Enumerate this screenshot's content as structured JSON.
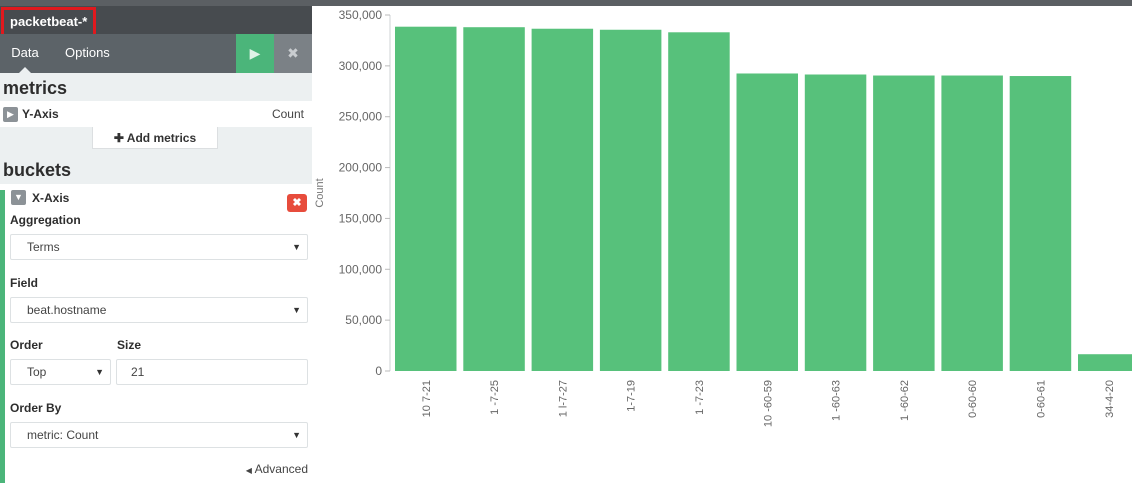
{
  "index_pattern": "packetbeat-*",
  "tabs": {
    "data": "Data",
    "options": "Options"
  },
  "buttons": {
    "apply": "▶",
    "discard": "✖"
  },
  "metrics": {
    "title": "metrics",
    "y_axis_label": "Y-Axis",
    "y_axis_value": "Count",
    "add_label": "Add metrics"
  },
  "buckets": {
    "title": "buckets",
    "x_axis_label": "X-Axis",
    "aggregation_label": "Aggregation",
    "aggregation_value": "Terms",
    "field_label": "Field",
    "field_value": "beat.hostname",
    "order_label": "Order",
    "order_value": "Top",
    "size_label": "Size",
    "size_value": "21",
    "order_by_label": "Order By",
    "order_by_value": "metric: Count",
    "advanced_label": "Advanced"
  },
  "colors": {
    "bar": "#57c17b",
    "accent": "#4bb57a",
    "danger": "#e74c3c"
  },
  "chart_data": {
    "type": "bar",
    "ylabel": "Count",
    "ylim": [
      0,
      350000
    ],
    "yticks": [
      "0",
      "50,000",
      "100,000",
      "150,000",
      "200,000",
      "250,000",
      "300,000",
      "350,000"
    ],
    "categories": [
      "10 7-21",
      "1 -7-25",
      "1 l-7-27",
      "1-7-19",
      "1 -7-23",
      "10 -60-59",
      "1 -60-63",
      "1 -60-62",
      "0-60-60",
      "0-60-61",
      "34-4-20"
    ],
    "values": [
      338500,
      338000,
      336500,
      335500,
      333000,
      292500,
      291500,
      290500,
      290500,
      290000,
      16500
    ],
    "grid": false,
    "legend": "none"
  }
}
